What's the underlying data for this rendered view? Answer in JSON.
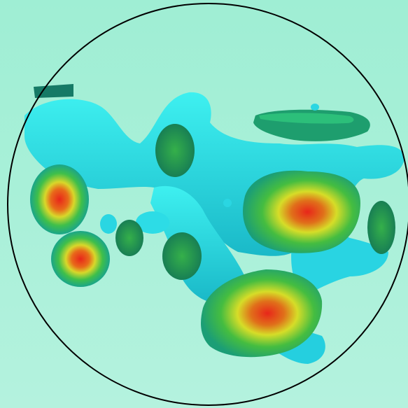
{
  "scene": {
    "subject": "isosurface-rendering",
    "colors": {
      "background": "#a6efd7",
      "surface": "#2fe0e8",
      "surface_shade": "#1bb7c7",
      "cap_green": "#1f9a4e",
      "cap_yellow": "#e8e22a",
      "cap_red": "#e8261a",
      "outline": "#000000"
    }
  }
}
